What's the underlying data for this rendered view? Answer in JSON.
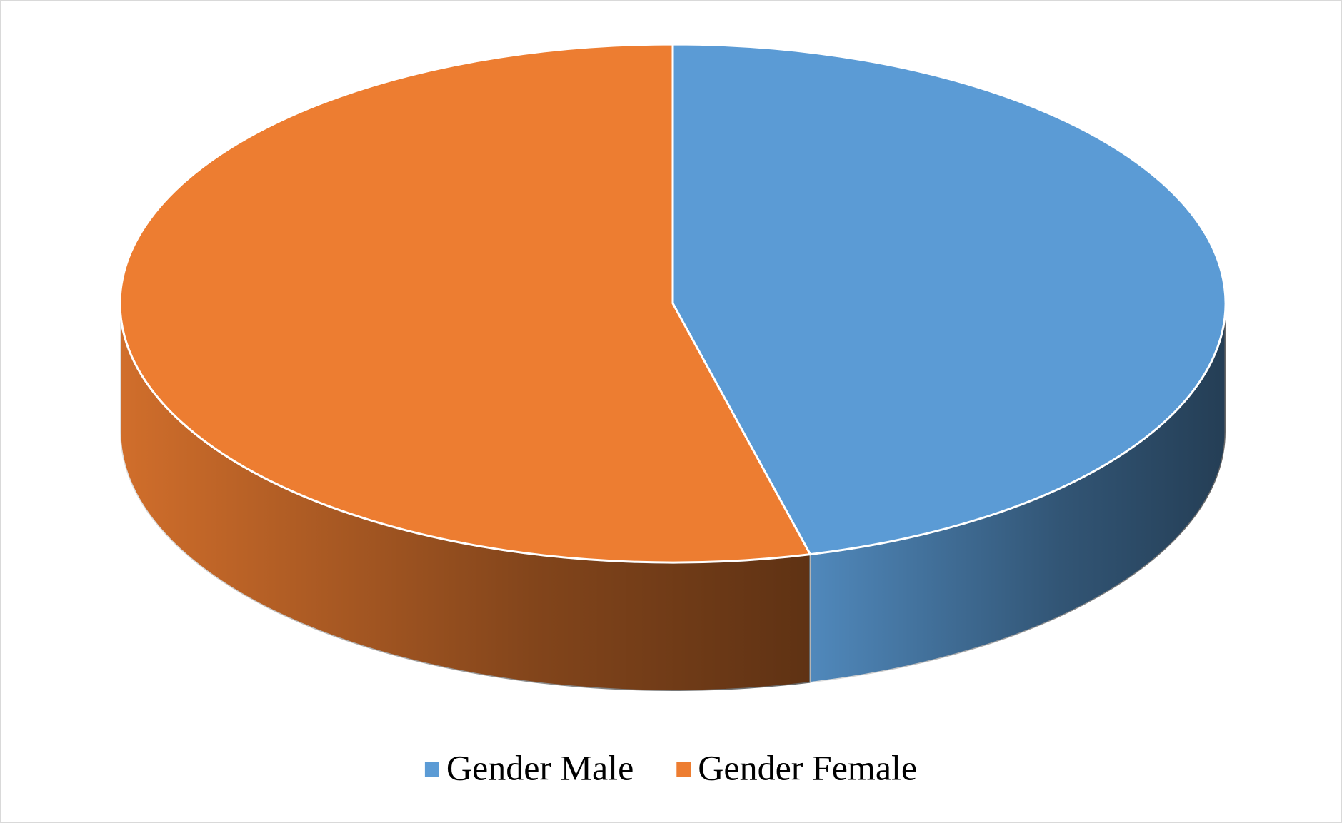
{
  "chart_data": {
    "type": "pie",
    "categories": [
      "Gender Male",
      "Gender Female"
    ],
    "values": [
      46,
      54
    ],
    "colors": [
      "#5b9bd5",
      "#ed7d31"
    ],
    "legend": "bottom"
  }
}
